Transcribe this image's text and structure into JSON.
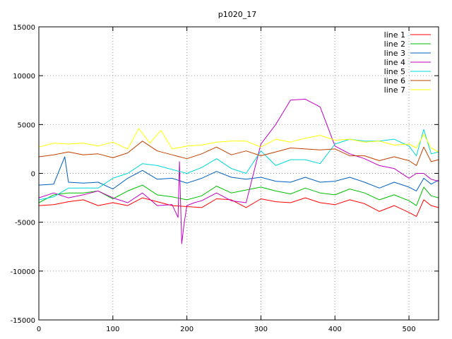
{
  "chart_data": {
    "type": "line",
    "title": "p1020_17",
    "xlabel": "",
    "ylabel": "",
    "xlim": [
      0,
      540
    ],
    "ylim": [
      -15000,
      15000
    ],
    "x_ticks": [
      0,
      100,
      200,
      300,
      400,
      500
    ],
    "y_ticks": [
      -15000,
      -10000,
      -5000,
      0,
      5000,
      10000,
      15000
    ],
    "x_tick_labels": [
      "0",
      "100",
      "200",
      "300",
      "400",
      "500"
    ],
    "y_tick_labels": [
      "-15000",
      "-10000",
      "-5000",
      "0",
      "5000",
      "10000",
      "15000"
    ],
    "grid": true,
    "legend_position": "top-right",
    "series": [
      {
        "name": "line 1",
        "color": "#ff0000",
        "x": [
          0,
          20,
          40,
          60,
          80,
          100,
          120,
          140,
          160,
          180,
          200,
          220,
          240,
          260,
          280,
          300,
          320,
          340,
          360,
          380,
          400,
          420,
          440,
          460,
          480,
          500,
          510,
          520,
          530,
          540
        ],
        "y": [
          -3300,
          -3200,
          -2900,
          -2700,
          -3300,
          -3000,
          -3300,
          -2500,
          -2900,
          -3300,
          -3400,
          -3500,
          -2600,
          -2700,
          -3500,
          -2600,
          -2900,
          -3000,
          -2500,
          -3000,
          -3200,
          -2700,
          -3100,
          -3900,
          -3300,
          -4000,
          -4400,
          -2700,
          -3300,
          -3500
        ]
      },
      {
        "name": "line 2",
        "color": "#00c000",
        "x": [
          0,
          20,
          40,
          60,
          80,
          100,
          120,
          140,
          160,
          180,
          200,
          220,
          240,
          260,
          280,
          300,
          320,
          340,
          360,
          380,
          400,
          420,
          440,
          460,
          480,
          500,
          510,
          520,
          530,
          540
        ],
        "y": [
          -3000,
          -2200,
          -2000,
          -2000,
          -1800,
          -2600,
          -1800,
          -1200,
          -2200,
          -2400,
          -2700,
          -2300,
          -1300,
          -2000,
          -1700,
          -1400,
          -1800,
          -2100,
          -1500,
          -2000,
          -2200,
          -1600,
          -2000,
          -2700,
          -2200,
          -2800,
          -3300,
          -1400,
          -2300,
          -2500
        ]
      },
      {
        "name": "line 3",
        "color": "#0060c0",
        "x": [
          0,
          20,
          35,
          40,
          60,
          80,
          100,
          120,
          140,
          160,
          180,
          200,
          220,
          240,
          260,
          280,
          300,
          320,
          340,
          360,
          380,
          400,
          420,
          440,
          460,
          480,
          500,
          510,
          520,
          530,
          540
        ],
        "y": [
          -1200,
          -1100,
          1700,
          -900,
          -1000,
          -900,
          -1600,
          -500,
          300,
          -600,
          -500,
          -1000,
          -500,
          200,
          -400,
          -600,
          -400,
          -800,
          -900,
          -400,
          -900,
          -800,
          -400,
          -900,
          -1500,
          -900,
          -1400,
          -1800,
          -500,
          -1100,
          -700
        ]
      },
      {
        "name": "line 4",
        "color": "#c000c0",
        "x": [
          0,
          20,
          40,
          60,
          80,
          100,
          120,
          140,
          160,
          180,
          188,
          190,
          193,
          196,
          200,
          210,
          220,
          240,
          260,
          280,
          300,
          320,
          340,
          360,
          380,
          390,
          400,
          420,
          440,
          460,
          480,
          500,
          510,
          520,
          530,
          540
        ],
        "y": [
          -2500,
          -2000,
          -2500,
          -2200,
          -1800,
          -2500,
          -3000,
          -2000,
          -3300,
          -3200,
          -4500,
          1200,
          -7200,
          -5300,
          -3300,
          -3000,
          -2800,
          -2000,
          -2800,
          -3000,
          3000,
          5000,
          7500,
          7600,
          6800,
          4800,
          2800,
          2000,
          1500,
          800,
          500,
          -500,
          0,
          0,
          -600,
          -800
        ]
      },
      {
        "name": "line 5",
        "color": "#00d8d8",
        "x": [
          0,
          20,
          40,
          60,
          80,
          100,
          120,
          140,
          160,
          180,
          200,
          220,
          240,
          260,
          280,
          300,
          320,
          340,
          360,
          380,
          400,
          420,
          440,
          460,
          480,
          500,
          510,
          520,
          530,
          540
        ],
        "y": [
          -2700,
          -2400,
          -1500,
          -1500,
          -1500,
          -500,
          0,
          1000,
          800,
          400,
          0,
          600,
          1500,
          500,
          0,
          2300,
          800,
          1400,
          1400,
          1000,
          3000,
          3500,
          3300,
          3300,
          3500,
          2800,
          1800,
          4500,
          2000,
          2200
        ]
      },
      {
        "name": "line 6",
        "color": "#c04000",
        "x": [
          0,
          20,
          40,
          60,
          80,
          100,
          120,
          140,
          160,
          180,
          200,
          220,
          240,
          260,
          280,
          300,
          320,
          340,
          360,
          380,
          400,
          420,
          440,
          460,
          480,
          500,
          510,
          520,
          530,
          540
        ],
        "y": [
          1700,
          1900,
          2200,
          1900,
          2000,
          1600,
          2100,
          3300,
          2300,
          1900,
          1500,
          2000,
          2700,
          1900,
          2300,
          1800,
          2200,
          2600,
          2500,
          2400,
          2500,
          1800,
          1800,
          1300,
          1700,
          1300,
          800,
          2700,
          1200,
          1400
        ]
      },
      {
        "name": "line 7",
        "color": "#ffff00",
        "x": [
          0,
          20,
          40,
          60,
          80,
          100,
          120,
          135,
          150,
          165,
          180,
          200,
          220,
          240,
          260,
          280,
          300,
          320,
          340,
          360,
          380,
          400,
          420,
          440,
          460,
          480,
          500,
          510,
          520,
          530,
          540
        ],
        "y": [
          2700,
          3100,
          3000,
          3100,
          2800,
          3200,
          2500,
          4600,
          3100,
          4400,
          2500,
          2800,
          2900,
          3200,
          3300,
          3300,
          2700,
          3500,
          3200,
          3600,
          3900,
          3400,
          3500,
          3200,
          3300,
          2900,
          3000,
          2600,
          4000,
          2600,
          2200
        ]
      }
    ]
  }
}
